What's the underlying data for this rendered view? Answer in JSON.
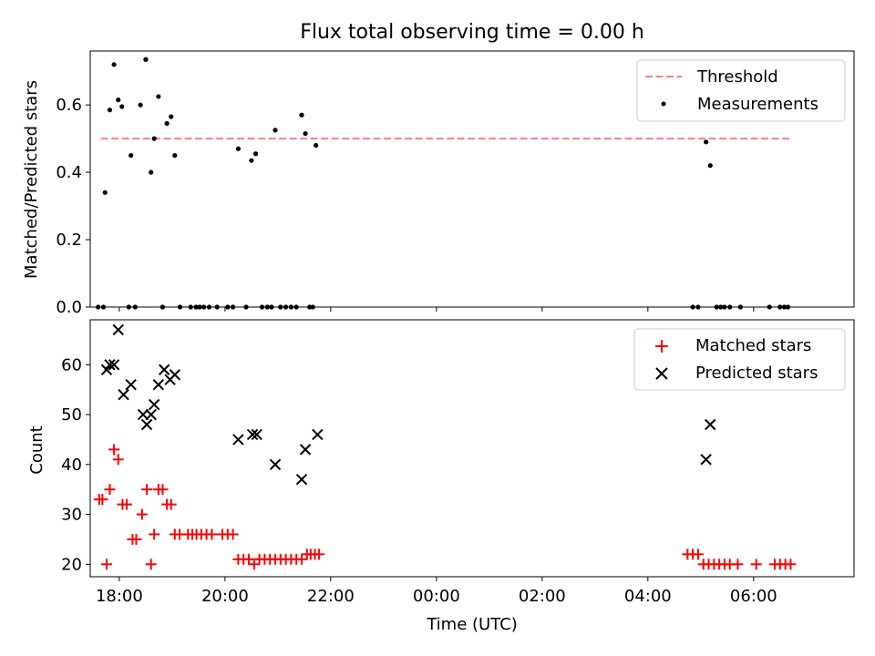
{
  "chart_data": [
    {
      "type": "scatter",
      "title": "Flux total observing time = 0.00 h",
      "xlabel": "",
      "ylabel": "Matched/Predicted stars",
      "ylim": [
        0,
        0.76
      ],
      "yticks": [
        0.0,
        0.2,
        0.4,
        0.6
      ],
      "yticklabels": [
        "0.0",
        "0.2",
        "0.4",
        "0.6"
      ],
      "x_unit": "hours since 17:00 UTC",
      "xlim": [
        0.45,
        14.9
      ],
      "xticks": [
        1,
        3,
        5,
        7,
        9,
        11,
        13
      ],
      "show_xticklabels": false,
      "legend_position": "upper right",
      "threshold": {
        "name": "Threshold",
        "value": 0.5,
        "x": [
          0.65,
          13.7
        ],
        "color": "#ff7f7f"
      },
      "series": [
        {
          "name": "Measurements",
          "color": "#000000",
          "marker": "dot",
          "points": [
            [
              0.73,
              0.34
            ],
            [
              0.82,
              0.585
            ],
            [
              0.9,
              0.72
            ],
            [
              0.98,
              0.615
            ],
            [
              1.05,
              0.595
            ],
            [
              1.22,
              0.45
            ],
            [
              1.4,
              0.6
            ],
            [
              1.5,
              0.735
            ],
            [
              1.6,
              0.4
            ],
            [
              1.66,
              0.5
            ],
            [
              1.74,
              0.625
            ],
            [
              1.9,
              0.545
            ],
            [
              1.98,
              0.565
            ],
            [
              2.05,
              0.45
            ],
            [
              3.25,
              0.47
            ],
            [
              3.5,
              0.435
            ],
            [
              3.58,
              0.455
            ],
            [
              3.95,
              0.525
            ],
            [
              4.45,
              0.57
            ],
            [
              4.52,
              0.515
            ],
            [
              4.72,
              0.48
            ],
            [
              12.1,
              0.49
            ],
            [
              12.18,
              0.42
            ],
            [
              0.6,
              0.0
            ],
            [
              0.7,
              0.0
            ],
            [
              1.18,
              0.0
            ],
            [
              1.3,
              0.0
            ],
            [
              1.82,
              0.0
            ],
            [
              2.15,
              0.0
            ],
            [
              2.35,
              0.0
            ],
            [
              2.45,
              0.0
            ],
            [
              2.52,
              0.0
            ],
            [
              2.6,
              0.0
            ],
            [
              2.7,
              0.0
            ],
            [
              2.85,
              0.0
            ],
            [
              3.05,
              0.0
            ],
            [
              3.15,
              0.0
            ],
            [
              3.4,
              0.0
            ],
            [
              3.7,
              0.0
            ],
            [
              3.8,
              0.0
            ],
            [
              3.88,
              0.0
            ],
            [
              4.05,
              0.0
            ],
            [
              4.15,
              0.0
            ],
            [
              4.25,
              0.0
            ],
            [
              4.35,
              0.0
            ],
            [
              4.6,
              0.0
            ],
            [
              4.66,
              0.0
            ],
            [
              11.85,
              0.0
            ],
            [
              11.95,
              0.0
            ],
            [
              12.3,
              0.0
            ],
            [
              12.38,
              0.0
            ],
            [
              12.45,
              0.0
            ],
            [
              12.55,
              0.0
            ],
            [
              12.75,
              0.0
            ],
            [
              13.3,
              0.0
            ],
            [
              13.5,
              0.0
            ],
            [
              13.58,
              0.0
            ],
            [
              13.65,
              0.0
            ]
          ]
        }
      ]
    },
    {
      "type": "scatter",
      "title": "",
      "xlabel": "Time (UTC)",
      "ylabel": "Count",
      "ylim": [
        17.5,
        69
      ],
      "yticks": [
        20,
        30,
        40,
        50,
        60
      ],
      "yticklabels": [
        "20",
        "30",
        "40",
        "50",
        "60"
      ],
      "x_unit": "hours since 17:00 UTC",
      "xlim": [
        0.45,
        14.9
      ],
      "xticks": [
        1,
        3,
        5,
        7,
        9,
        11,
        13
      ],
      "xticklabels": [
        "18:00",
        "20:00",
        "22:00",
        "00:00",
        "02:00",
        "04:00",
        "06:00"
      ],
      "legend_position": "upper right",
      "series": [
        {
          "name": "Matched stars",
          "color": "#ff0000",
          "marker": "plus",
          "points": [
            [
              0.62,
              33
            ],
            [
              0.68,
              33
            ],
            [
              0.76,
              20
            ],
            [
              0.82,
              35
            ],
            [
              0.9,
              43
            ],
            [
              0.98,
              41
            ],
            [
              1.06,
              32
            ],
            [
              1.14,
              32
            ],
            [
              1.25,
              25
            ],
            [
              1.32,
              25
            ],
            [
              1.43,
              30
            ],
            [
              1.52,
              35
            ],
            [
              1.6,
              20
            ],
            [
              1.66,
              26
            ],
            [
              1.74,
              35
            ],
            [
              1.82,
              35
            ],
            [
              1.9,
              32
            ],
            [
              1.98,
              32
            ],
            [
              2.05,
              26
            ],
            [
              2.14,
              26
            ],
            [
              2.3,
              26
            ],
            [
              2.38,
              26
            ],
            [
              2.46,
              26
            ],
            [
              2.55,
              26
            ],
            [
              2.65,
              26
            ],
            [
              2.75,
              26
            ],
            [
              2.95,
              26
            ],
            [
              3.05,
              26
            ],
            [
              3.15,
              26
            ],
            [
              3.25,
              21
            ],
            [
              3.35,
              21
            ],
            [
              3.45,
              21
            ],
            [
              3.55,
              20
            ],
            [
              3.65,
              21
            ],
            [
              3.75,
              21
            ],
            [
              3.85,
              21
            ],
            [
              3.95,
              21
            ],
            [
              4.05,
              21
            ],
            [
              4.15,
              21
            ],
            [
              4.25,
              21
            ],
            [
              4.35,
              21
            ],
            [
              4.45,
              21
            ],
            [
              4.55,
              22
            ],
            [
              4.62,
              22
            ],
            [
              4.7,
              22
            ],
            [
              4.78,
              22
            ],
            [
              11.75,
              22
            ],
            [
              11.85,
              22
            ],
            [
              11.95,
              22
            ],
            [
              12.05,
              20
            ],
            [
              12.15,
              20
            ],
            [
              12.25,
              20
            ],
            [
              12.35,
              20
            ],
            [
              12.45,
              20
            ],
            [
              12.55,
              20
            ],
            [
              12.7,
              20
            ],
            [
              13.05,
              20
            ],
            [
              13.4,
              20
            ],
            [
              13.5,
              20
            ],
            [
              13.6,
              20
            ],
            [
              13.7,
              20
            ]
          ]
        },
        {
          "name": "Predicted stars",
          "color": "#000000",
          "marker": "x",
          "points": [
            [
              0.76,
              59
            ],
            [
              0.82,
              60
            ],
            [
              0.9,
              60
            ],
            [
              0.98,
              67
            ],
            [
              1.08,
              54
            ],
            [
              1.22,
              56
            ],
            [
              1.45,
              50
            ],
            [
              1.52,
              48
            ],
            [
              1.6,
              50
            ],
            [
              1.66,
              52
            ],
            [
              1.74,
              56
            ],
            [
              1.85,
              59
            ],
            [
              1.96,
              57
            ],
            [
              2.05,
              58
            ],
            [
              3.25,
              45
            ],
            [
              3.52,
              46
            ],
            [
              3.6,
              46
            ],
            [
              3.95,
              40
            ],
            [
              4.45,
              37
            ],
            [
              4.52,
              43
            ],
            [
              4.75,
              46
            ],
            [
              12.1,
              41
            ],
            [
              12.18,
              48
            ]
          ]
        }
      ]
    }
  ]
}
